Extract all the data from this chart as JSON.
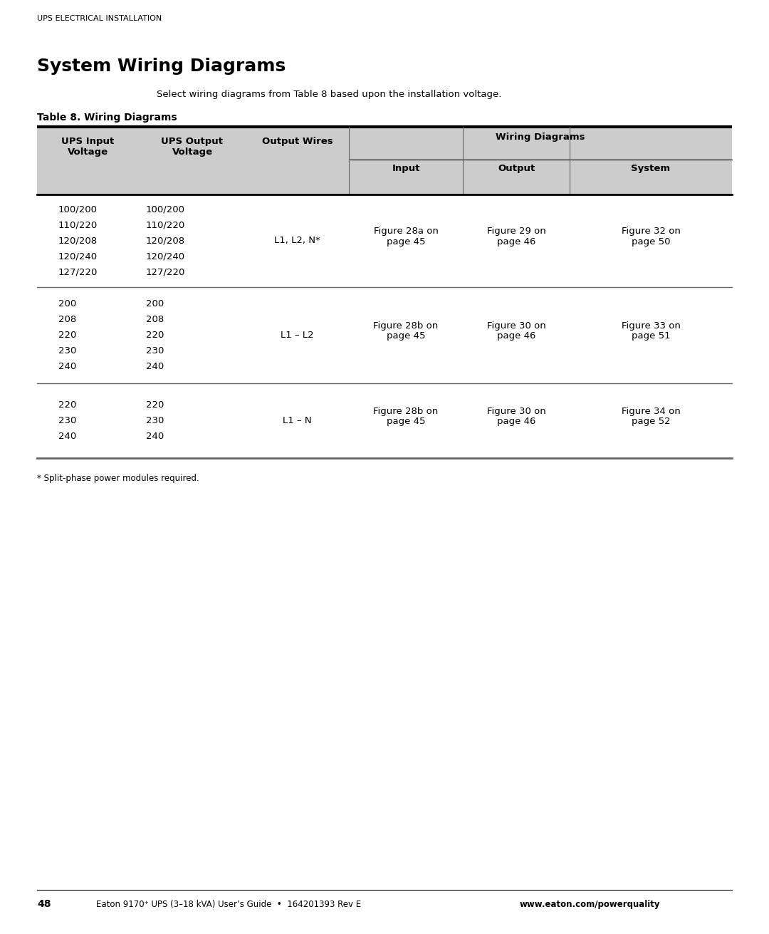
{
  "page_header": "UPS ELECTRICAL INSTALLATION",
  "section_title": "System Wiring Diagrams",
  "intro_text": "Select wiring diagrams from Table 8 based upon the installation voltage.",
  "table_label": "Table 8. Wiring Diagrams",
  "rows": [
    {
      "input": [
        "100/200",
        "110/220",
        "120/208",
        "120/240",
        "127/220"
      ],
      "output": [
        "100/200",
        "110/220",
        "120/208",
        "120/240",
        "127/220"
      ],
      "wires": "L1, L2, N*",
      "fig_input": "Figure 28a on\npage 45",
      "fig_output": "Figure 29 on\npage 46",
      "fig_system": "Figure 32 on\npage 50"
    },
    {
      "input": [
        "200",
        "208",
        "220",
        "230",
        "240"
      ],
      "output": [
        "200",
        "208",
        "220",
        "230",
        "240"
      ],
      "wires": "L1 – L2",
      "fig_input": "Figure 28b on\npage 45",
      "fig_output": "Figure 30 on\npage 46",
      "fig_system": "Figure 33 on\npage 51"
    },
    {
      "input": [
        "220",
        "230",
        "240"
      ],
      "output": [
        "220",
        "230",
        "240"
      ],
      "wires": "L1 – N",
      "fig_input": "Figure 28b on\npage 45",
      "fig_output": "Figure 30 on\npage 46",
      "fig_system": "Figure 34 on\npage 52"
    }
  ],
  "footnote": "* Split-phase power modules required.",
  "footer_page": "48",
  "footer_text": "Eaton 9170⁺ UPS (3–18 kVA) User’s Guide  •  164201393 Rev E  ",
  "footer_url": "www.eaton.com/powerquality",
  "bg_color": "#ffffff",
  "header_bg": "#cccccc",
  "thick_line_color": "#000000",
  "thin_line_color": "#666666"
}
